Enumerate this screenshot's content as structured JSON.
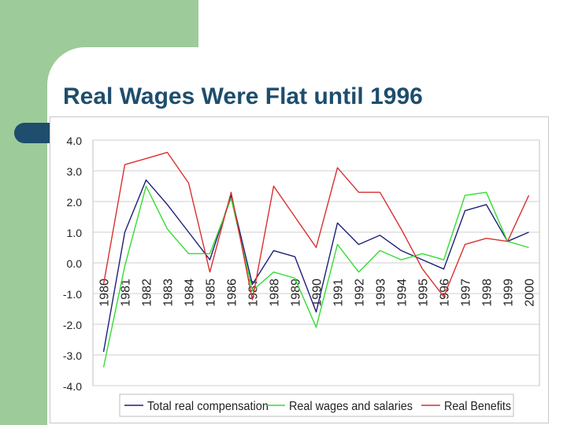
{
  "slide": {
    "title": "Real Wages Were Flat until 1996",
    "colors": {
      "background_block": "#9dcb9a",
      "title": "#1e4d6d",
      "accent_tab": "#1e4d6d"
    }
  },
  "chart_data": {
    "type": "line",
    "title": "",
    "xlabel": "",
    "ylabel": "",
    "ylim": [
      -4.0,
      4.0
    ],
    "yticks": [
      "4.0",
      "3.0",
      "2.0",
      "1.0",
      "0.0",
      "-1.0",
      "-2.0",
      "-3.0",
      "-4.0"
    ],
    "categories": [
      "1980",
      "1981",
      "1982",
      "1983",
      "1984",
      "1985",
      "1986",
      "1987",
      "1988",
      "1989",
      "1990",
      "1991",
      "1992",
      "1993",
      "1994",
      "1995",
      "1996",
      "1997",
      "1998",
      "1999",
      "2000"
    ],
    "grid": true,
    "legend_position": "bottom",
    "series": [
      {
        "name": "Total real compensation",
        "color": "#1f1f7a",
        "values": [
          -2.9,
          1.0,
          2.7,
          1.9,
          1.0,
          0.1,
          2.2,
          -0.7,
          0.4,
          0.2,
          -1.6,
          1.3,
          0.6,
          0.9,
          0.4,
          0.1,
          -0.2,
          1.7,
          1.9,
          0.7,
          1.0
        ]
      },
      {
        "name": "Real wages and salaries",
        "color": "#33dd33",
        "values": [
          -3.4,
          -0.1,
          2.5,
          1.1,
          0.3,
          0.3,
          2.1,
          -0.9,
          -0.3,
          -0.5,
          -2.1,
          0.6,
          -0.3,
          0.4,
          0.1,
          0.3,
          0.1,
          2.2,
          2.3,
          0.7,
          0.5
        ]
      },
      {
        "name": "Real Benefits",
        "color": "#d93030",
        "values": [
          -0.7,
          3.2,
          3.4,
          3.6,
          2.6,
          -0.3,
          2.3,
          -1.2,
          2.5,
          1.5,
          0.5,
          3.1,
          2.3,
          2.3,
          1.1,
          -0.2,
          -1.1,
          0.6,
          0.8,
          0.7,
          2.2
        ]
      }
    ]
  }
}
